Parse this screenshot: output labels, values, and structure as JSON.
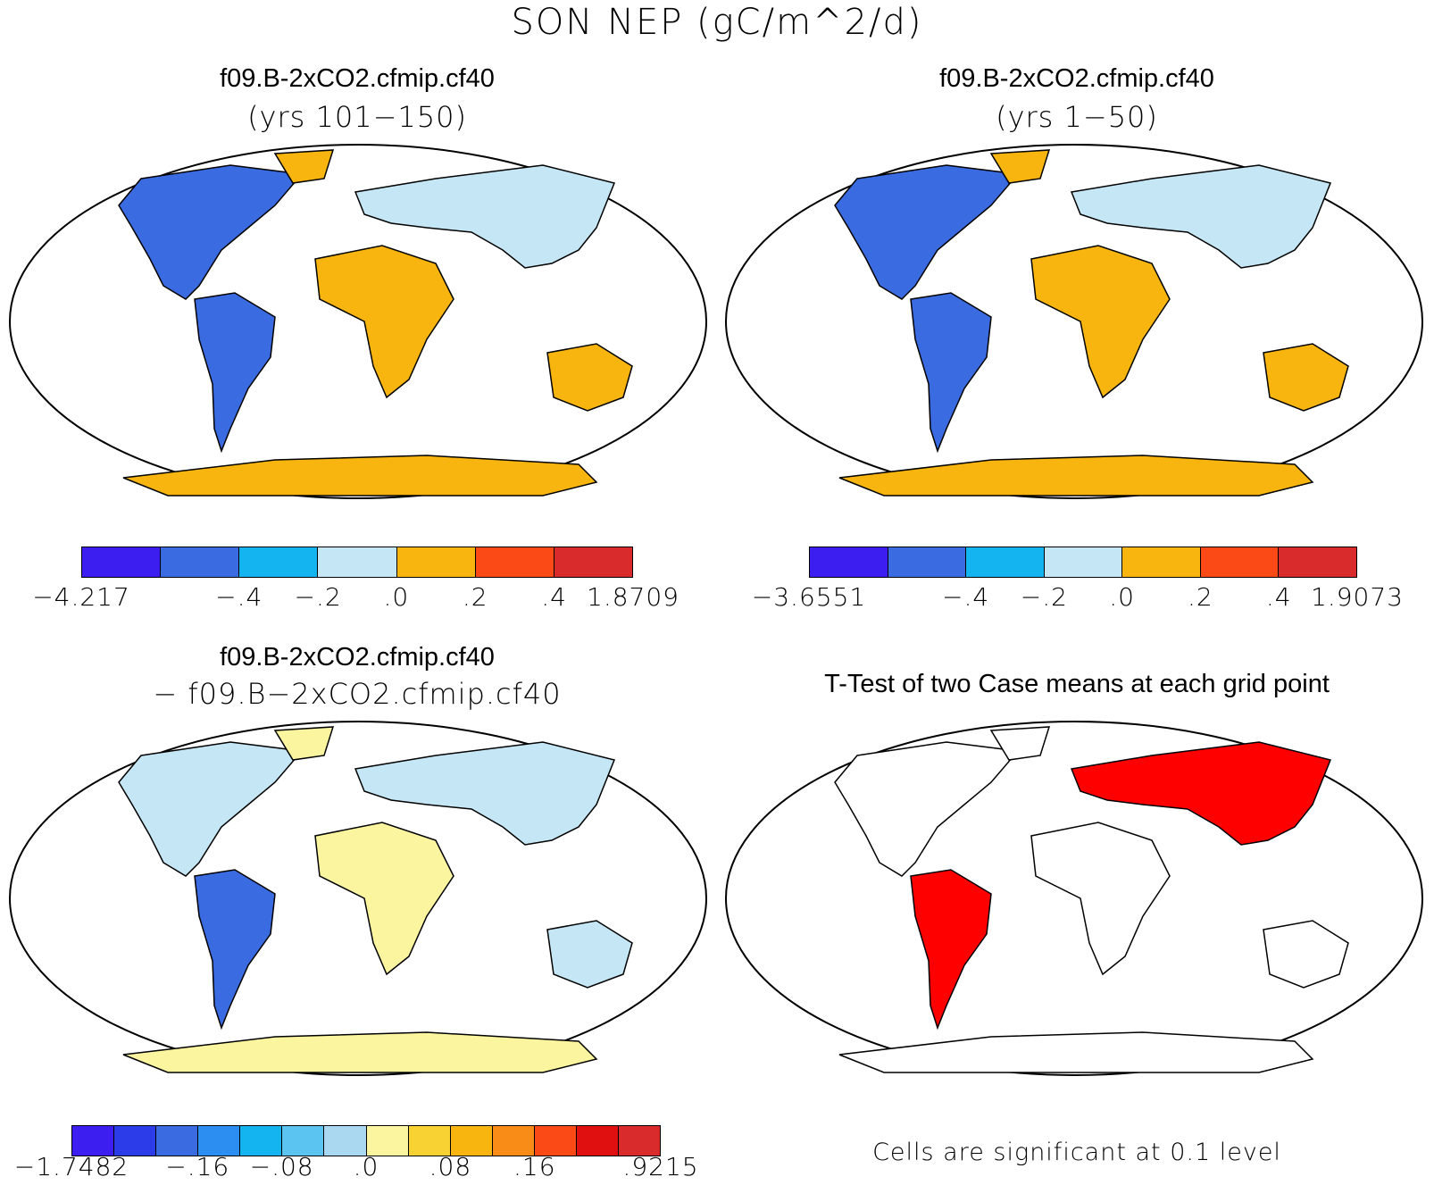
{
  "title": "SON NEP (gC/m^2/d)",
  "panels": [
    {
      "title": "f09.B-2xCO2.cfmip.cf40",
      "subtitle": "(yrs 101−150)",
      "colorbar": {
        "colors": [
          "#3d1ef0",
          "#3b6be0",
          "#14b4f0",
          "#c5e6f4",
          "#f8b510",
          "#fb4a16",
          "#d92b2b"
        ],
        "ticks": [
          "−4.217",
          "−.4",
          "−.2",
          ".0",
          ".2",
          ".4",
          "1.8709"
        ]
      }
    },
    {
      "title": "f09.B-2xCO2.cfmip.cf40",
      "subtitle": "(yrs 1−50)",
      "colorbar": {
        "colors": [
          "#3d1ef0",
          "#3b6be0",
          "#14b4f0",
          "#c5e6f4",
          "#f8b510",
          "#fb4a16",
          "#d92b2b"
        ],
        "ticks": [
          "−3.6551",
          "−.4",
          "−.2",
          ".0",
          ".2",
          ".4",
          "1.9073"
        ]
      }
    },
    {
      "title": "f09.B-2xCO2.cfmip.cf40",
      "subtitle": "− f09.B−2xCO2.cfmip.cf40",
      "colorbar": {
        "colors": [
          "#3d1ef0",
          "#2b3ce8",
          "#3b6be0",
          "#2b8ef0",
          "#14b4f0",
          "#5cc4f0",
          "#a9d8f0",
          "#fbf5a0",
          "#f8d132",
          "#f8b510",
          "#f88c16",
          "#fb4a16",
          "#e01010",
          "#d92b2b"
        ],
        "ticks": [
          "−1.7482",
          "−.16",
          "−.08",
          ".0",
          ".08",
          ".16",
          ".9215"
        ]
      }
    },
    {
      "title": "T-Test of two Case means at each grid point",
      "note": "Cells are significant at 0.1 level"
    }
  ],
  "map_colors": {
    "land_blue": "#3b6be0",
    "land_light": "#c5e6f4",
    "land_orange": "#f8b510",
    "land_red": "#d92b2b",
    "diff_yellow": "#fbf5a0",
    "significant": "#ff0000"
  }
}
